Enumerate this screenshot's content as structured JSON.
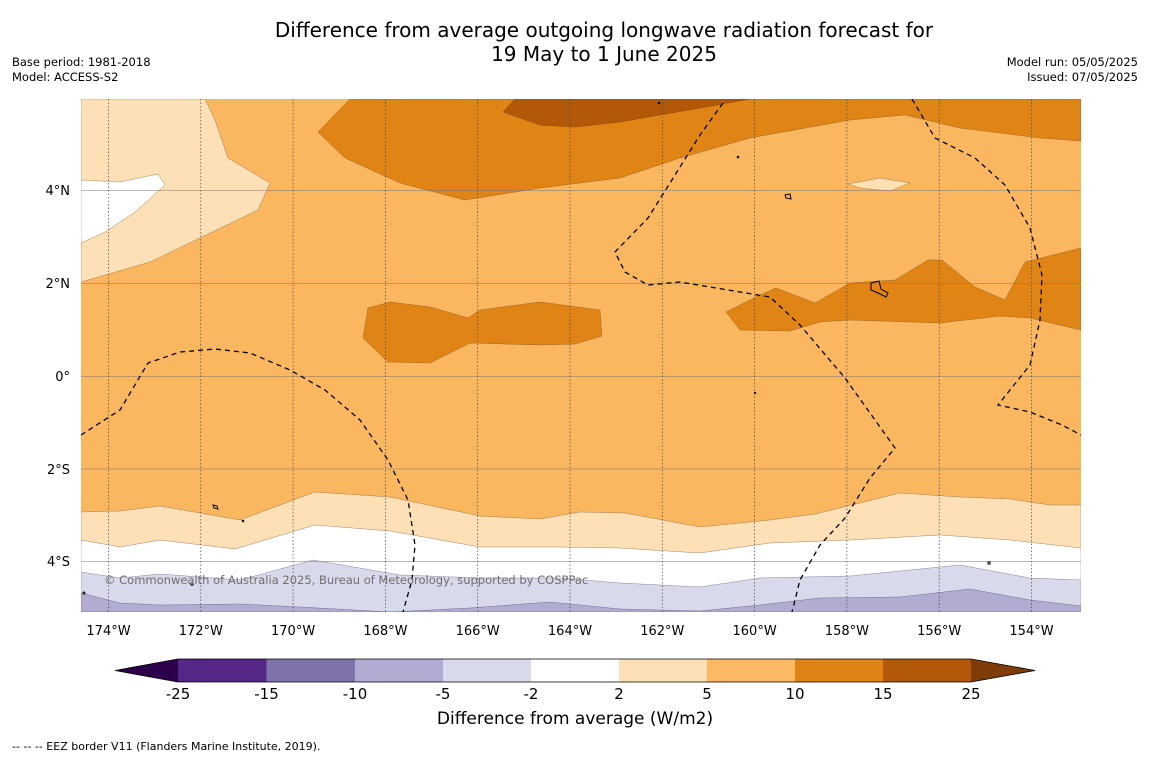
{
  "header": {
    "title_line1": "Difference from average outgoing longwave radiation forecast for",
    "title_line2": "19 May to 1 June 2025",
    "base_period": "Base period: 1981-2018",
    "model": "Model: ACCESS-S2",
    "model_run": "Model run: 05/05/2025",
    "issued": "Issued: 07/05/2025"
  },
  "map": {
    "lat_labels": [
      "4°N",
      "2°N",
      "0°",
      "2°S",
      "4°S"
    ],
    "lon_labels": [
      "174°W",
      "172°W",
      "170°W",
      "168°W",
      "166°W",
      "164°W",
      "162°W",
      "160°W",
      "158°W",
      "156°W",
      "154°W"
    ],
    "copyright": "© Commonwealth of Australia 2025, Bureau of Meteorology, supported by COSPPac",
    "colors": {
      "band_10_15": "#e08416",
      "band_5_10": "#fbb760",
      "band_2_5": "#fee0b6",
      "band_-2_2": "#ffffff",
      "band_-5_-2": "#d8daeb",
      "band_-10_-5": "#b2abd2",
      "band_15_25": "#b35806"
    }
  },
  "colorbar": {
    "ticks": [
      "-25",
      "-15",
      "-10",
      "-5",
      "-2",
      "2",
      "5",
      "10",
      "15",
      "25"
    ],
    "colors": [
      "#2d004b",
      "#542788",
      "#8073ac",
      "#b2abd2",
      "#d8daeb",
      "#ffffff",
      "#fee0b6",
      "#fdb863",
      "#e08214",
      "#b35806",
      "#7f3b08"
    ],
    "label": "Difference from average (W/m2)"
  },
  "footnote": "--  --  -- EEZ border V11 (Flanders Marine Institute, 2019)."
}
